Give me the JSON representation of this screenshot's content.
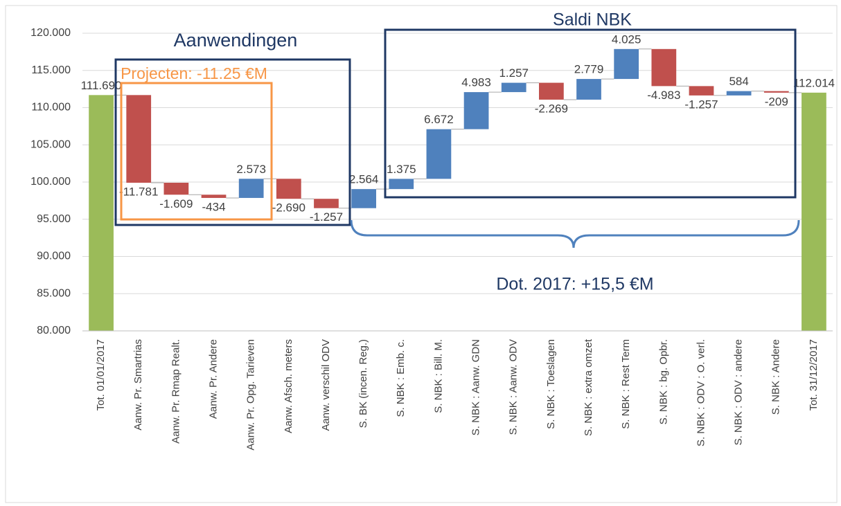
{
  "chart_data": {
    "type": "waterfall",
    "categories": [
      "Tot. 01/01/2017",
      "Aanw. Pr. Smartrias",
      "Aanw. Pr. Rmap Realt.",
      "Aanw. Pr. Andere",
      "Aanw. Pr. Opg. Tarieven",
      "Aanw. Afsch. meters",
      "Aanw. verschil ODV",
      "S. BK (incen. Reg.)",
      "S. NBK : Emb. c.",
      "S. NBK : Bill. M.",
      "S. NBK : Aanw. GDN",
      "S. NBK : Aanw. ODV",
      "S. NBK : Toeslagen",
      "S. NBK : extra omzet",
      "S. NBK : Rest Term",
      "S. NBK : bg. Opbr.",
      "S. NBK : ODV : O. verl.",
      "S. NBK : ODV : andere",
      "S. NBK : Andere",
      "Tot. 31/12/2017"
    ],
    "values": [
      111690,
      -11781,
      -1609,
      -434,
      2573,
      -2690,
      -1257,
      2564,
      1375,
      6672,
      4983,
      1257,
      -2269,
      2779,
      4025,
      -4983,
      -1257,
      584,
      -209,
      112014
    ],
    "value_labels": [
      "111.690",
      "-11.781",
      "-1.609",
      "-434",
      "2.573",
      "-2.690",
      "-1.257",
      "2.564",
      "1.375",
      "6.672",
      "4.983",
      "1.257",
      "-2.269",
      "2.779",
      "4.025",
      "-4.983",
      "-1.257",
      "584",
      "-209",
      "112.014"
    ],
    "measure": [
      "absolute",
      "relative",
      "relative",
      "relative",
      "relative",
      "relative",
      "relative",
      "relative",
      "relative",
      "relative",
      "relative",
      "relative",
      "relative",
      "relative",
      "relative",
      "relative",
      "relative",
      "relative",
      "relative",
      "absolute"
    ],
    "colors": {
      "total": "#9bbb59",
      "increase": "#4f81bd",
      "decrease": "#c0504d"
    },
    "ylim": [
      80000,
      120000
    ],
    "yticks": [
      {
        "value": 80000,
        "label": "80.000"
      },
      {
        "value": 85000,
        "label": "85.000"
      },
      {
        "value": 90000,
        "label": "90.000"
      },
      {
        "value": 95000,
        "label": "95.000"
      },
      {
        "value": 100000,
        "label": "100.000"
      },
      {
        "value": 105000,
        "label": "105.000"
      },
      {
        "value": 110000,
        "label": "110.000"
      },
      {
        "value": 115000,
        "label": "115.000"
      },
      {
        "value": 120000,
        "label": "120.000"
      }
    ],
    "grid": true,
    "annotations": [
      "Aanwendingen",
      "Saldi NBK",
      "Projecten: -11.25 €M",
      "Dot. 2017: +15,5 €M"
    ]
  }
}
